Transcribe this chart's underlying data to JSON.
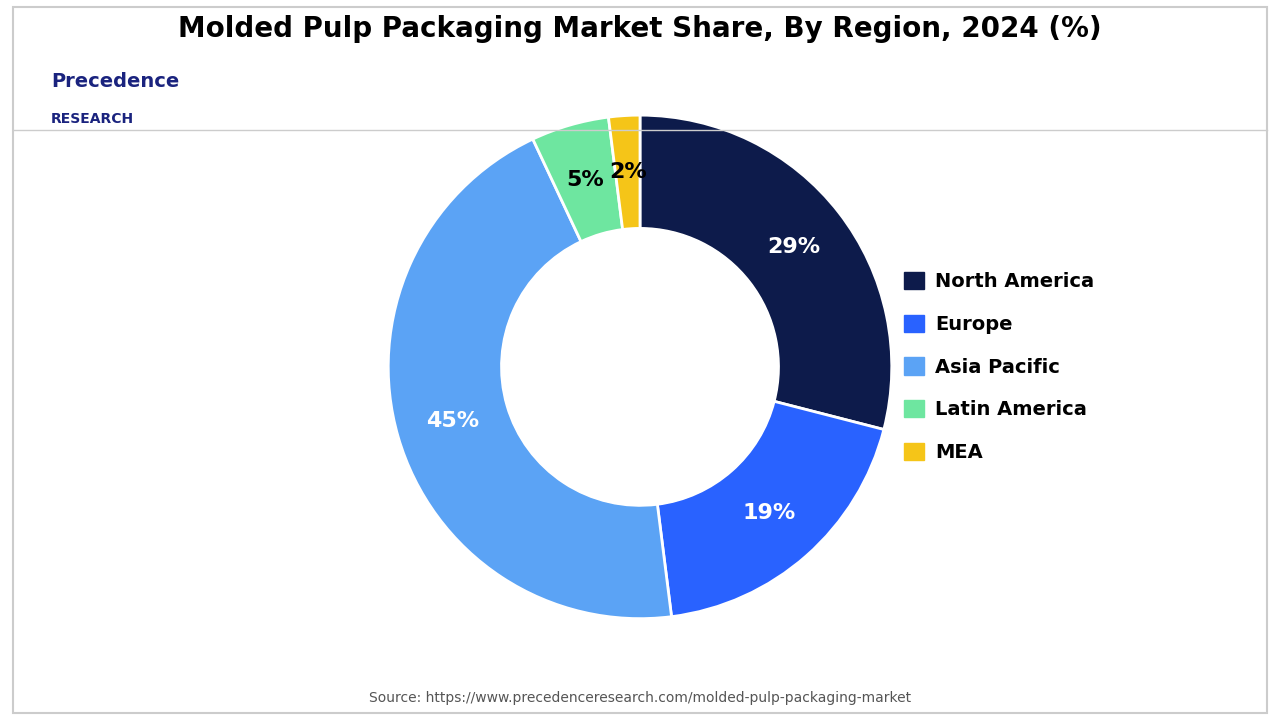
{
  "title": "Molded Pulp Packaging Market Share, By Region, 2024 (%)",
  "regions": [
    "North America",
    "Europe",
    "Asia Pacific",
    "Latin America",
    "MEA"
  ],
  "values": [
    29,
    19,
    45,
    5,
    2
  ],
  "colors": [
    "#0d1b4b",
    "#2962ff",
    "#5ba3f5",
    "#6ee6a0",
    "#f5c518"
  ],
  "pct_labels": [
    "29%",
    "19%",
    "45%",
    "5%",
    "2%"
  ],
  "label_colors": [
    "white",
    "white",
    "white",
    "black",
    "black"
  ],
  "source_text": "Source: https://www.precedenceresearch.com/molded-pulp-packaging-market",
  "logo_line1": "Precedence",
  "logo_line2": "RESEARCH",
  "background_color": "#ffffff",
  "border_color": "#cccccc"
}
